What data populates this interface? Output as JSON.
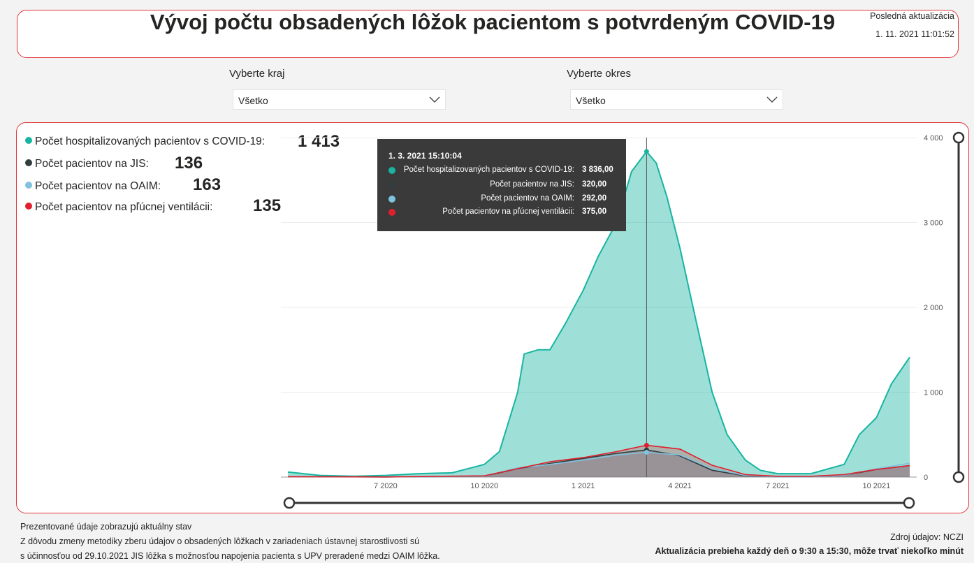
{
  "header": {
    "title": "Vývoj počtu obsadených lôžok pacientom s potvrdeným COVID-19",
    "last_update_label": "Posledná aktualizácia",
    "last_update_value": "1. 11. 2021 11:01:52"
  },
  "filters": {
    "region": {
      "label": "Vyberte kraj",
      "value": "Všetko"
    },
    "district": {
      "label": "Vyberte okres",
      "value": "Všetko"
    }
  },
  "legend": [
    {
      "label": "Počet hospitalizovaných pacientov s COVID-19:",
      "value": "1 413",
      "color": "#17b5a0"
    },
    {
      "label": "Počet pacientov na JIS:",
      "value": "136",
      "color": "#333d3f"
    },
    {
      "label": "Počet pacientov na OAIM:",
      "value": "163",
      "color": "#7fc3de"
    },
    {
      "label": "Počet pacientov na pľúcnej ventilácii:",
      "value": "135",
      "color": "#e0202c"
    }
  ],
  "tooltip": {
    "time": "1. 3. 2021 15:10:04",
    "rows": [
      {
        "name": "Počet hospitalizovaných pacientov s COVID-19:",
        "value": "3 836,00",
        "color": "#17b5a0"
      },
      {
        "name": "Počet pacientov na JIS:",
        "value": "320,00",
        "color": "#333d3f"
      },
      {
        "name": "Počet pacientov na OAIM:",
        "value": "292,00",
        "color": "#7fc3de"
      },
      {
        "name": "Počet pacientov na pľúcnej ventilácii:",
        "value": "375,00",
        "color": "#e0202c"
      }
    ]
  },
  "chart_data": {
    "type": "area",
    "x_type": "date",
    "x_ticks": [
      "7 2020",
      "10 2020",
      "1 2021",
      "4 2021",
      "7 2021",
      "10 2021"
    ],
    "y_ticks": [
      "0",
      "1 000",
      "2 000",
      "3 000",
      "4 000"
    ],
    "y_lim": [
      0,
      4000
    ],
    "x_lim": [
      "2020-04-01",
      "2021-11-01"
    ],
    "series": [
      {
        "name": "Počet hospitalizovaných pacientov s COVID-19",
        "color": "#17b5a0",
        "points": [
          [
            "2020-04-01",
            60
          ],
          [
            "2020-05-01",
            20
          ],
          [
            "2020-06-01",
            10
          ],
          [
            "2020-07-01",
            20
          ],
          [
            "2020-08-01",
            40
          ],
          [
            "2020-09-01",
            50
          ],
          [
            "2020-10-01",
            150
          ],
          [
            "2020-10-15",
            300
          ],
          [
            "2020-11-01",
            1000
          ],
          [
            "2020-11-07",
            1450
          ],
          [
            "2020-11-20",
            1500
          ],
          [
            "2020-12-01",
            1500
          ],
          [
            "2020-12-15",
            1800
          ],
          [
            "2021-01-01",
            2200
          ],
          [
            "2021-01-15",
            2600
          ],
          [
            "2021-02-01",
            3000
          ],
          [
            "2021-02-15",
            3600
          ],
          [
            "2021-03-01",
            3836
          ],
          [
            "2021-03-10",
            3700
          ],
          [
            "2021-03-20",
            3300
          ],
          [
            "2021-04-01",
            2700
          ],
          [
            "2021-04-15",
            1900
          ],
          [
            "2021-05-01",
            1000
          ],
          [
            "2021-05-15",
            500
          ],
          [
            "2021-06-01",
            200
          ],
          [
            "2021-06-15",
            80
          ],
          [
            "2021-07-01",
            40
          ],
          [
            "2021-08-01",
            40
          ],
          [
            "2021-09-01",
            150
          ],
          [
            "2021-09-15",
            500
          ],
          [
            "2021-10-01",
            700
          ],
          [
            "2021-10-15",
            1100
          ],
          [
            "2021-11-01",
            1413
          ]
        ]
      },
      {
        "name": "Počet pacientov na JIS",
        "color": "#333d3f",
        "points": [
          [
            "2020-04-01",
            5
          ],
          [
            "2020-07-01",
            2
          ],
          [
            "2020-10-01",
            10
          ],
          [
            "2020-11-01",
            100
          ],
          [
            "2020-12-01",
            160
          ],
          [
            "2021-01-01",
            220
          ],
          [
            "2021-02-01",
            280
          ],
          [
            "2021-03-01",
            320
          ],
          [
            "2021-04-01",
            250
          ],
          [
            "2021-05-01",
            80
          ],
          [
            "2021-06-01",
            15
          ],
          [
            "2021-07-01",
            5
          ],
          [
            "2021-08-01",
            5
          ],
          [
            "2021-09-01",
            20
          ],
          [
            "2021-10-01",
            90
          ],
          [
            "2021-11-01",
            136
          ]
        ]
      },
      {
        "name": "Počet pacientov na OAIM",
        "color": "#7fc3de",
        "points": [
          [
            "2020-04-01",
            5
          ],
          [
            "2020-07-01",
            2
          ],
          [
            "2020-10-01",
            10
          ],
          [
            "2020-11-01",
            110
          ],
          [
            "2020-12-01",
            150
          ],
          [
            "2021-01-01",
            200
          ],
          [
            "2021-02-01",
            260
          ],
          [
            "2021-03-01",
            292
          ],
          [
            "2021-04-01",
            260
          ],
          [
            "2021-05-01",
            100
          ],
          [
            "2021-06-01",
            20
          ],
          [
            "2021-07-01",
            5
          ],
          [
            "2021-08-01",
            5
          ],
          [
            "2021-09-01",
            20
          ],
          [
            "2021-10-01",
            100
          ],
          [
            "2021-11-01",
            163
          ]
        ]
      },
      {
        "name": "Počet pacientov na pľúcnej ventilácii",
        "color": "#e0202c",
        "points": [
          [
            "2020-04-01",
            5
          ],
          [
            "2020-07-01",
            2
          ],
          [
            "2020-10-01",
            15
          ],
          [
            "2020-11-01",
            100
          ],
          [
            "2020-12-01",
            180
          ],
          [
            "2021-01-01",
            230
          ],
          [
            "2021-02-01",
            300
          ],
          [
            "2021-03-01",
            375
          ],
          [
            "2021-04-01",
            330
          ],
          [
            "2021-05-01",
            140
          ],
          [
            "2021-06-01",
            30
          ],
          [
            "2021-07-01",
            10
          ],
          [
            "2021-08-01",
            10
          ],
          [
            "2021-09-01",
            30
          ],
          [
            "2021-10-01",
            90
          ],
          [
            "2021-11-01",
            135
          ]
        ]
      }
    ]
  },
  "footer": {
    "line1": "Prezentované údaje zobrazujú aktuálny stav",
    "line2": "Z dôvodu zmeny metodiky zberu údajov o obsadených lôžkach v zariadeniach ústavnej starostlivosti sú",
    "line3": "s účinnosťou od 29.10.2021 JIS lôžka s možnosťou napojenia pacienta s UPV preradené medzi OAIM lôžka.",
    "source": "Zdroj údajov: NCZI",
    "update_note": "Aktualizácia prebieha každý deň o 9:30 a 15:30, môže trvať niekoľko minút"
  }
}
